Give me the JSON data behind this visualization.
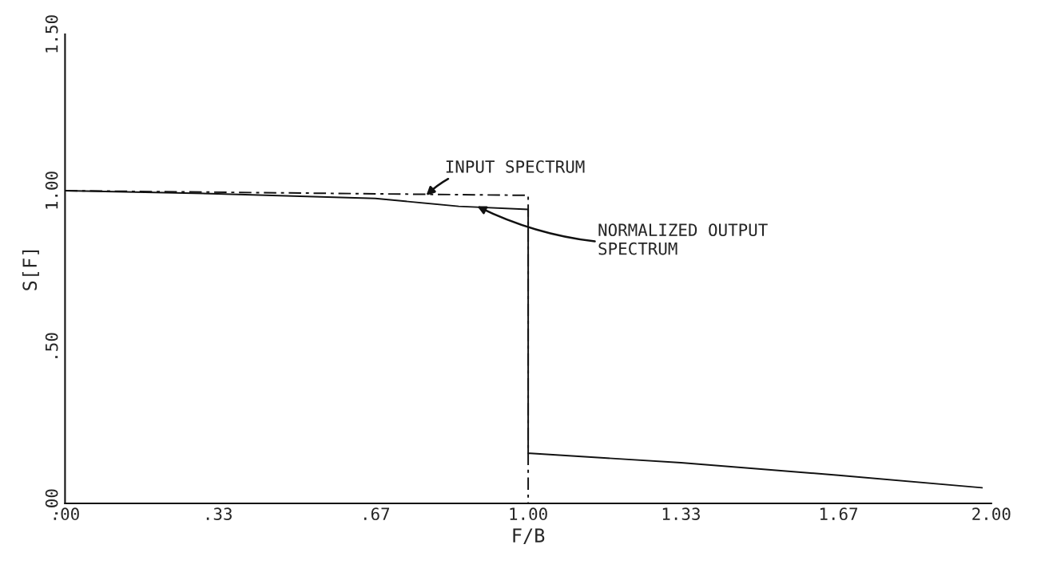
{
  "chart_data": {
    "type": "line",
    "xlabel": "F/B",
    "ylabel": "S[F]",
    "xlim": [
      0,
      2
    ],
    "ylim": [
      0,
      1.5
    ],
    "xticks": [
      {
        "value": 0,
        "label": ".00"
      },
      {
        "value": 0.33,
        "label": ".33"
      },
      {
        "value": 0.67,
        "label": ".67"
      },
      {
        "value": 1.0,
        "label": "1.00"
      },
      {
        "value": 1.33,
        "label": "1.33"
      },
      {
        "value": 1.67,
        "label": "1.67"
      },
      {
        "value": 2.0,
        "label": "2.00"
      }
    ],
    "yticks": [
      {
        "value": 0,
        "label": ".00"
      },
      {
        "value": 0.5,
        "label": ".50"
      },
      {
        "value": 1.0,
        "label": "1.00"
      },
      {
        "value": 1.5,
        "label": "1.50"
      }
    ],
    "grid": false,
    "legend": false,
    "marker": "none",
    "series": [
      {
        "color": "#111111",
        "line_style": "dashed",
        "x": [
          0,
          1.0,
          1.0
        ],
        "values": [
          1.0,
          0.985,
          0.0
        ]
      },
      {
        "color": "#111111",
        "line_style": "solid",
        "x": [
          0,
          0.33,
          0.67,
          0.85,
          1.0,
          1.0,
          1.005,
          1.33,
          1.67,
          1.98
        ],
        "values": [
          1.0,
          0.99,
          0.975,
          0.95,
          0.94,
          0.16,
          0.16,
          0.13,
          0.09,
          0.05
        ]
      }
    ],
    "annotations": [
      {
        "text": "INPUT SPECTRUM",
        "x": 0.78,
        "y": 0.985
      },
      {
        "text": "NORMALIZED OUTPUT\nSPECTRUM",
        "x": 0.89,
        "y": 0.95
      }
    ]
  }
}
